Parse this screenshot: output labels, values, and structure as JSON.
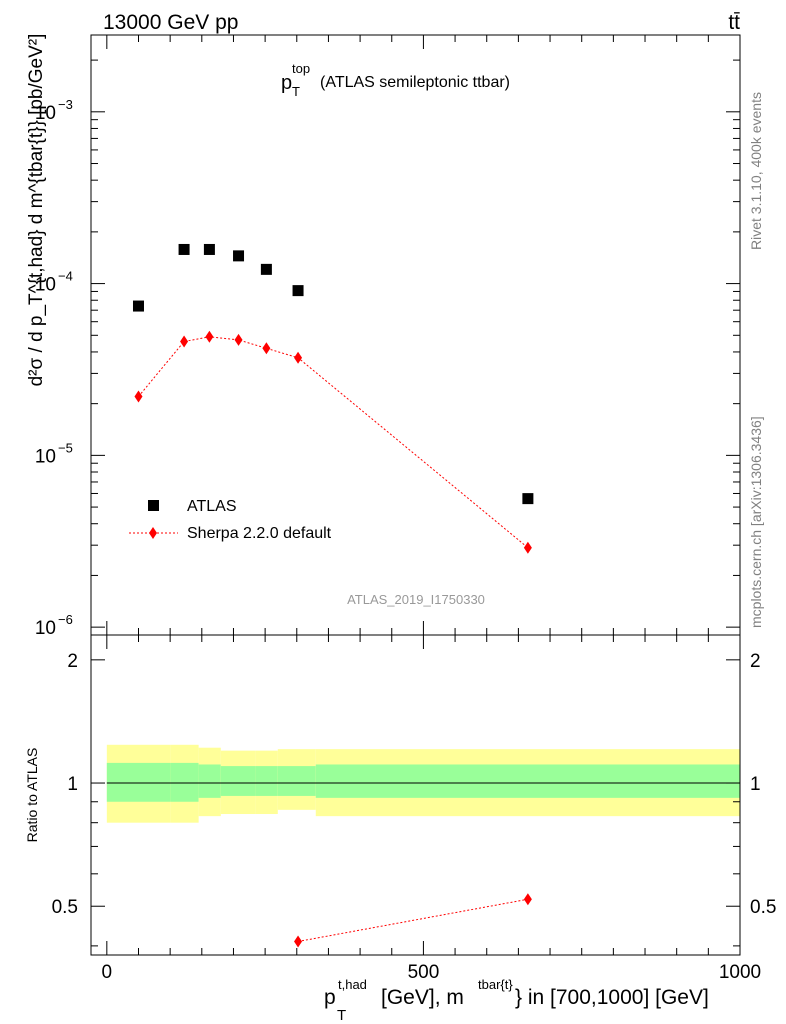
{
  "header": {
    "left_title": "13000 GeV pp",
    "right_title": "tt̄"
  },
  "main_plot": {
    "title_main": "p",
    "title_sup": "top",
    "title_sub": "T",
    "title_rest": "(ATLAS semileptonic ttbar)",
    "ylabel": "d²σ / d p_T^{t,had} d m^{tbar{t}} [pb/GeV²]",
    "ytick_labels": [
      "10",
      "10",
      "10",
      "10"
    ],
    "ytick_exponents": [
      "−3",
      "−4",
      "−5",
      "−6"
    ],
    "legend": [
      {
        "label": "ATLAS",
        "marker": "square",
        "color": "#000000"
      },
      {
        "label": "Sherpa 2.2.0 default",
        "marker": "diamond",
        "color": "#ff0000"
      }
    ],
    "analysis_label": "ATLAS_2019_I1750330",
    "side_text_1": "Rivet 3.1.10,  400k events",
    "side_text_2": "mcplots.cern.ch [arXiv:1306.3436]"
  },
  "ratio_plot": {
    "ylabel": "Ratio to ATLAS",
    "ytick_labels": [
      "0.5",
      "1",
      "2"
    ],
    "xtick_labels": [
      "0",
      "500",
      "1000"
    ],
    "xlabel_p": "p",
    "xlabel_sup": "t,had",
    "xlabel_sub": "T",
    "xlabel_rest1": "[GeV], m",
    "xlabel_sup2": "tbar{t}",
    "xlabel_rest2": "} in [700,1000] [GeV]"
  },
  "colors": {
    "data": "#000000",
    "mc": "#ff0000",
    "band_inner": "#99ff99",
    "band_outer": "#ffff99",
    "side_text": "#808080"
  },
  "chart_data": [
    {
      "type": "scatter",
      "title": "p_T^top (ATLAS semileptonic ttbar)",
      "xlabel": "p_T^{t,had} [GeV], m^{tbar{t}} in [700,1000] [GeV]",
      "ylabel": "d²σ / d p_T^{t,had} d m^{tbar{t}} [pb/GeV²]",
      "xlim": [
        -25,
        1000
      ],
      "ylim": [
        9e-07,
        0.0028
      ],
      "yscale": "log",
      "series": [
        {
          "name": "ATLAS",
          "x": [
            50,
            122,
            162,
            208,
            252,
            302,
            665
          ],
          "values": [
            7.4e-05,
            0.000158,
            0.000158,
            0.000145,
            0.000121,
            9.1e-05,
            5.6e-06
          ]
        },
        {
          "name": "Sherpa 2.2.0 default",
          "x": [
            50,
            122,
            162,
            208,
            252,
            302,
            665
          ],
          "values": [
            2.2e-05,
            4.6e-05,
            4.9e-05,
            4.7e-05,
            4.2e-05,
            3.7e-05,
            2.9e-06
          ]
        }
      ]
    },
    {
      "type": "line",
      "ylabel": "Ratio to ATLAS",
      "xlim": [
        -25,
        1000
      ],
      "ylim": [
        0.38,
        2.3
      ],
      "yscale": "log",
      "ratio_points": {
        "x": [
          302,
          665
        ],
        "values": [
          0.41,
          0.52
        ]
      },
      "uncertainty_bins": {
        "edges": [
          0,
          100,
          145,
          180,
          235,
          270,
          330,
          1000
        ],
        "inner_low": [
          0.9,
          0.9,
          0.92,
          0.93,
          0.93,
          0.93,
          0.92
        ],
        "inner_high": [
          1.12,
          1.12,
          1.11,
          1.1,
          1.1,
          1.1,
          1.11
        ],
        "outer_low": [
          0.8,
          0.8,
          0.83,
          0.84,
          0.84,
          0.86,
          0.83
        ],
        "outer_high": [
          1.24,
          1.24,
          1.22,
          1.2,
          1.2,
          1.21,
          1.21
        ]
      }
    }
  ]
}
